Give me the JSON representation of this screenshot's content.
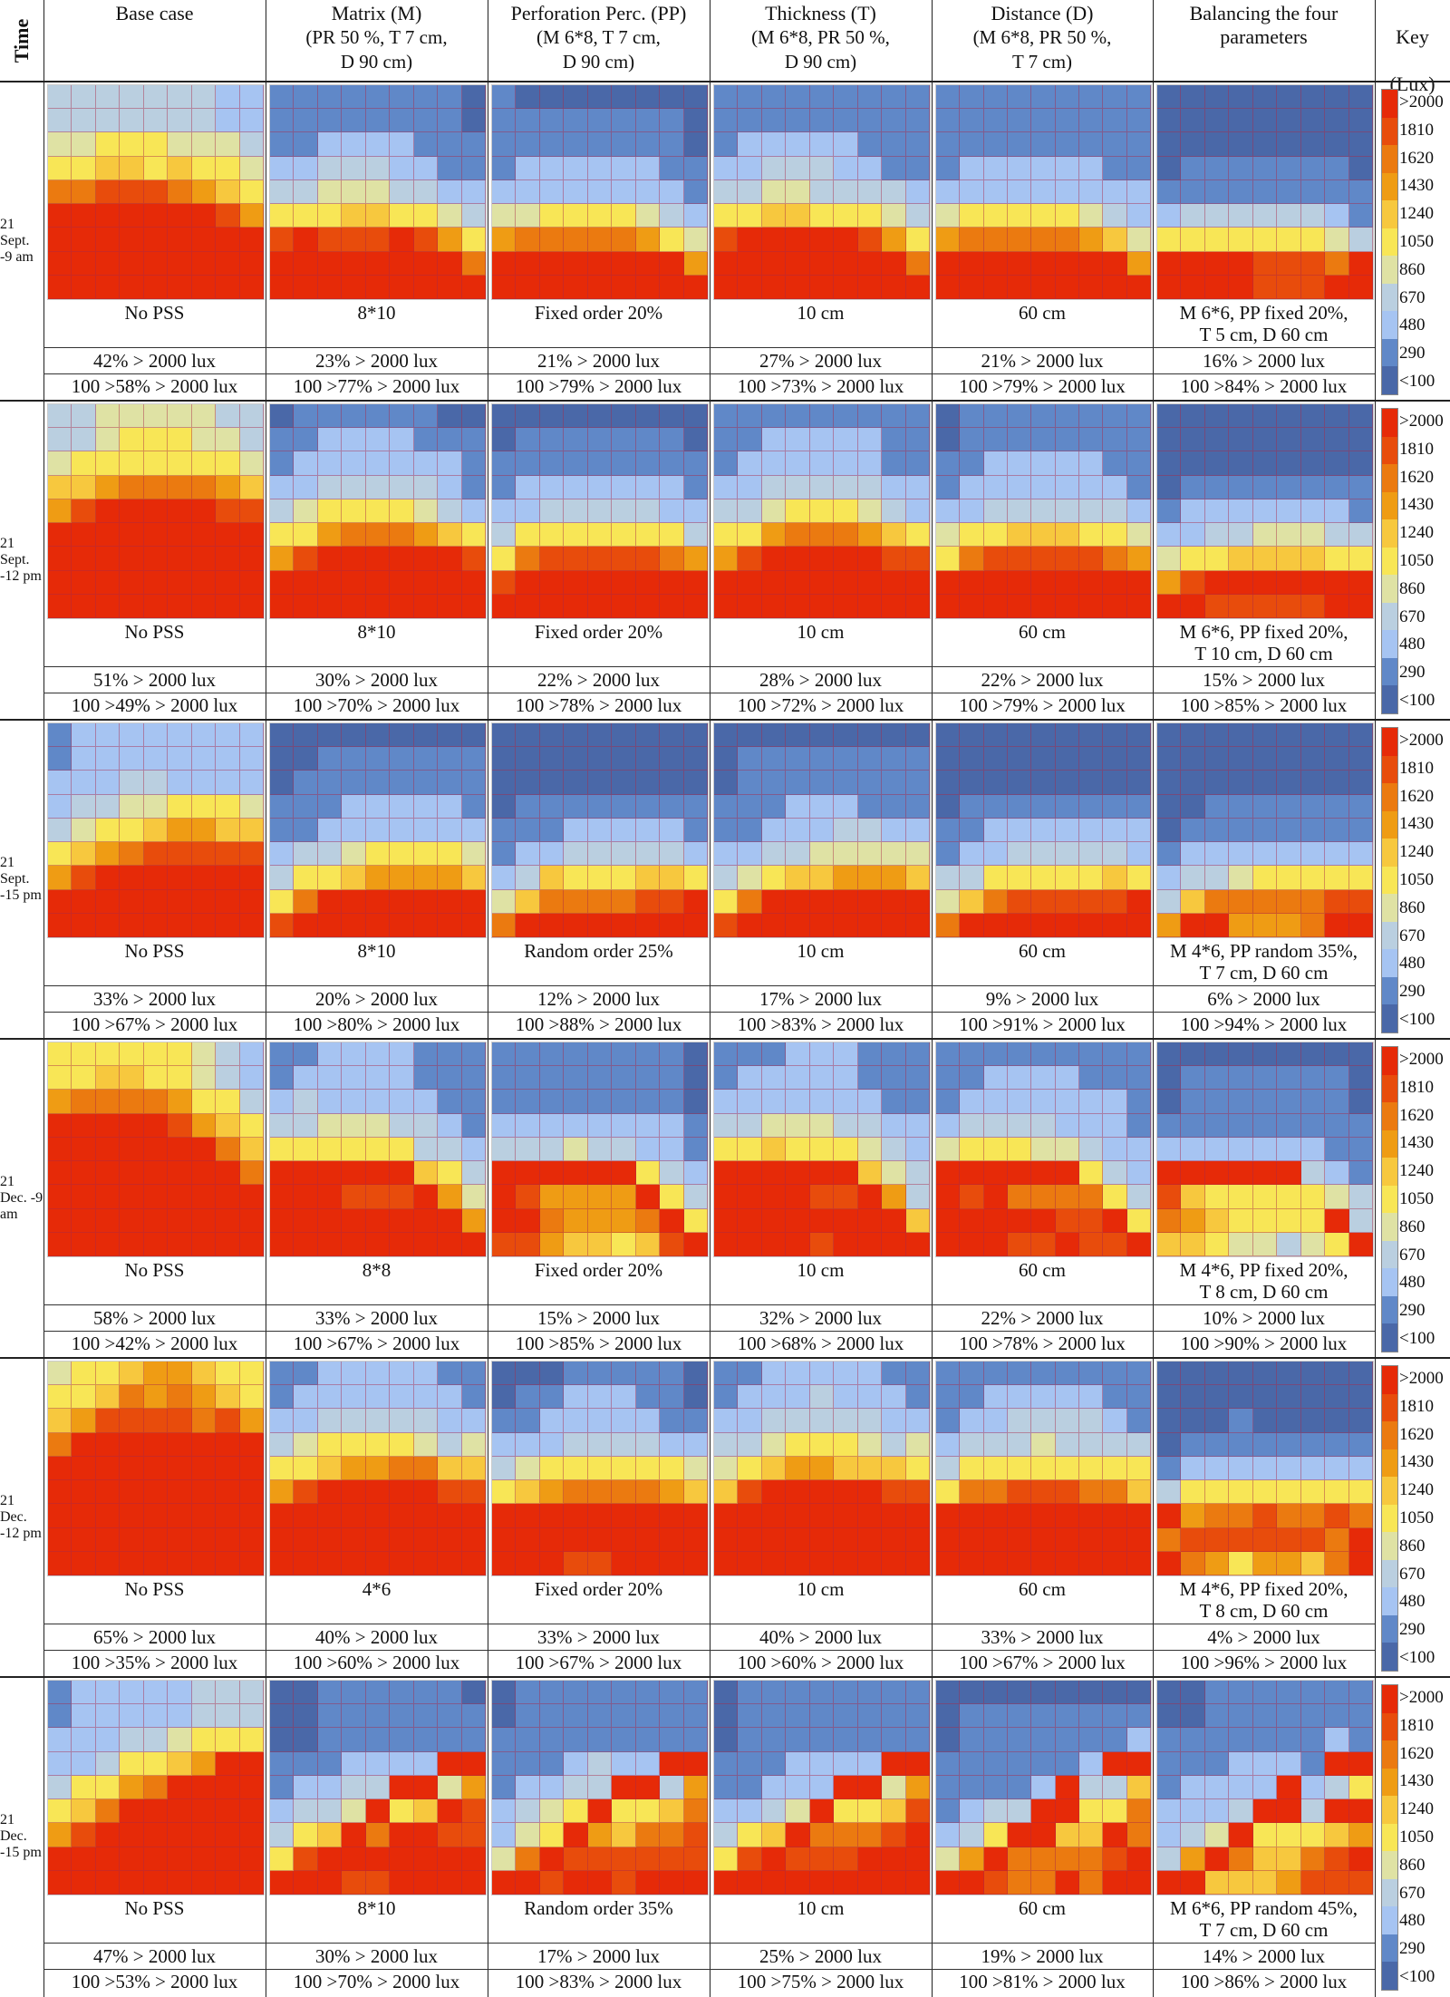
{
  "header": {
    "time": "Time",
    "columns": [
      {
        "title": "Base case",
        "sub": ""
      },
      {
        "title": "Matrix (M)",
        "sub": "(PR 50 %, T 7 cm,\nD 90 cm)"
      },
      {
        "title": "Perforation Perc. (PP)",
        "sub": "(M 6*8, T 7 cm,\nD 90 cm)"
      },
      {
        "title": "Thickness (T)",
        "sub": "(M 6*8, PR 50 %,\nD 90 cm)"
      },
      {
        "title": "Distance (D)",
        "sub": "(M 6*8, PR 50 %,\nT 7 cm)"
      },
      {
        "title": "Balancing the four\nparameters",
        "sub": ""
      }
    ],
    "key_title": "Key",
    "key_unit": "(Lux)"
  },
  "key": {
    "labels": [
      ">2000",
      "1810",
      "1620",
      "1430",
      "1240",
      "1050",
      "860",
      "670",
      "480",
      "290",
      "<100"
    ],
    "colors": [
      "#4a68a8",
      "#6088c8",
      "#a6c4f2",
      "#bacfe0",
      "#dfe2a4",
      "#f8e656",
      "#f7c83e",
      "#ef9c14",
      "#eb7a10",
      "#e84c0c",
      "#e62a08"
    ]
  },
  "bands": [
    {
      "time": "21 Sept. -9 am",
      "cases": [
        {
          "label": "No PSS",
          "stat1": "42% > 2000 lux",
          "stat2": "100 >58% > 2000 lux",
          "grid": [
            "333333322",
            "333333322",
            "445554443",
            "556656554",
            "889998765",
            "AAAAAAA97",
            "AAAAAAAAA",
            "AAAAAAAAA",
            "AAAAAAAAA"
          ]
        },
        {
          "label": "8*10",
          "stat1": "23% > 2000 lux",
          "stat2": "100 >77% > 2000 lux",
          "grid": [
            "111111110",
            "111111110",
            "112222111",
            "223332211",
            "334443322",
            "555665543",
            "9A999A975",
            "AAAAAAAA8",
            "AAAAAAAAA"
          ]
        },
        {
          "label": "Fixed order 20%",
          "stat1": "21% > 2000 lux",
          "stat2": "100 >79% > 2000 lux",
          "grid": [
            "100000000",
            "111111110",
            "111111110",
            "122222211",
            "222222221",
            "445555432",
            "788888754",
            "AAAAAAAA7",
            "AAAAAAAAA"
          ]
        },
        {
          "label": "10 cm",
          "stat1": "27% > 2000 lux",
          "stat2": "100 >73% > 2000 lux",
          "grid": [
            "111111111",
            "111111111",
            "122222111",
            "223332211",
            "334433332",
            "556655543",
            "9AAAAA975",
            "AAAAAAAA8",
            "AAAAAAAAA"
          ]
        },
        {
          "label": "60 cm",
          "stat1": "21% > 2000 lux",
          "stat2": "100 >79% > 2000 lux",
          "grid": [
            "111111111",
            "111111111",
            "111111111",
            "122222211",
            "222222222",
            "455555432",
            "788888764",
            "AAAAAAAA7",
            "AAAAAAAAA"
          ]
        },
        {
          "label": "M 6*6, PP fixed 20%,\nT 5 cm, D 60 cm",
          "stat1": "16% > 2000 lux",
          "stat2": "100 >84% > 2000 lux",
          "grid": [
            "000000000",
            "000000000",
            "000000000",
            "011111110",
            "111111111",
            "233333321",
            "555555543",
            "AAAA9998A",
            "AAAA999AA"
          ]
        }
      ]
    },
    {
      "time": "21 Sept. -12 pm",
      "cases": [
        {
          "label": "No PSS",
          "stat1": "51% > 2000 lux",
          "stat2": "100 >49% > 2000 lux",
          "grid": [
            "334444433",
            "334555443",
            "455555554",
            "667888876",
            "79AAAAA99",
            "AAAAAAAAA",
            "AAAAAAAAA",
            "AAAAAAAAA",
            "AAAAAAAAA"
          ]
        },
        {
          "label": "8*10",
          "stat1": "30% > 2000 lux",
          "stat2": "100 >70% > 2000 lux",
          "grid": [
            "011111100",
            "112222111",
            "122222221",
            "223333321",
            "345555432",
            "557888765",
            "79AAAAAA9",
            "AAAAAAAAA",
            "AAAAAAAAA"
          ]
        },
        {
          "label": "Fixed order 20%",
          "stat1": "22% > 2000 lux",
          "stat2": "100 >78% > 2000 lux",
          "grid": [
            "000000000",
            "011111110",
            "111111111",
            "122222221",
            "223333322",
            "355555553",
            "589999987",
            "9AAAAAAAA",
            "AAAAAAAAA"
          ]
        },
        {
          "label": "10 cm",
          "stat1": "28% > 2000 lux",
          "stat2": "100 >72% > 2000 lux",
          "grid": [
            "111111111",
            "112222211",
            "122222211",
            "223333322",
            "334555432",
            "557888765",
            "79AAAAA99",
            "AAAAAAAAA",
            "AAAAAAAAA"
          ]
        },
        {
          "label": "60 cm",
          "stat1": "22% > 2000 lux",
          "stat2": "100 >79% > 2000 lux",
          "grid": [
            "011111111",
            "011111111",
            "112222211",
            "122222221",
            "223333332",
            "455666554",
            "589999987",
            "AAAAAAAAA",
            "AAAAAAAAA"
          ]
        },
        {
          "label": "M 6*6, PP fixed 20%,\nT 10 cm, D 60 cm",
          "stat1": "15% > 2000 lux",
          "stat2": "100 >85% > 2000 lux",
          "grid": [
            "000000000",
            "000000000",
            "000000000",
            "011111111",
            "122222221",
            "223344433",
            "455666655",
            "79AAAAAAA",
            "AA99999AA"
          ]
        }
      ]
    },
    {
      "time": "21 Sept. -15 pm",
      "cases": [
        {
          "label": "No PSS",
          "stat1": "33% > 2000 lux",
          "stat2": "100 >67% > 2000 lux",
          "grid": [
            "122222222",
            "122222222",
            "222332222",
            "233445554",
            "345567766",
            "567899999",
            "79AAAAAAA",
            "AAAAAAAAA",
            "AAAAAAAAA"
          ]
        },
        {
          "label": "8*10",
          "stat1": "20% > 2000 lux",
          "stat2": "100 >80% > 2000 lux",
          "grid": [
            "000000000",
            "001111111",
            "011111111",
            "111222221",
            "112222222",
            "233455554",
            "355677776",
            "58AAAAAAA",
            "9AAAAAAAA"
          ]
        },
        {
          "label": "Random order 25%",
          "stat1": "12% > 2000 lux",
          "stat2": "100 >88% > 2000 lux",
          "grid": [
            "000000000",
            "000000000",
            "000000000",
            "011111111",
            "111222221",
            "122333332",
            "236555665",
            "46888899A",
            "8AAAAAAAA"
          ]
        },
        {
          "label": "10 cm",
          "stat1": "17% > 2000 lux",
          "stat2": "100 >83% > 2000 lux",
          "grid": [
            "000000000",
            "011111111",
            "011111111",
            "111222111",
            "112223322",
            "223344444",
            "345667776",
            "58AAAAAAA",
            "9AAAAAAAA"
          ]
        },
        {
          "label": "60 cm",
          "stat1": "9% > 2000 lux",
          "stat2": "100 >91% > 2000 lux",
          "grid": [
            "000000000",
            "000000000",
            "000000000",
            "011111111",
            "112222222",
            "122333332",
            "335555565",
            "46899999A",
            "8AAAAAAAA"
          ]
        },
        {
          "label": "M 4*6, PP random 35%,\nT 7 cm, D 60 cm",
          "stat1": "6% > 2000 lux",
          "stat2": "100 >94% > 2000 lux",
          "grid": [
            "000000000",
            "000000000",
            "000000000",
            "001111111",
            "011111111",
            "122222222",
            "233455555",
            "368888899",
            "7AA7778AA"
          ]
        }
      ]
    },
    {
      "time": "21 Dec. -9 am",
      "cases": [
        {
          "label": "No PSS",
          "stat1": "58% > 2000 lux",
          "stat2": "100 >42% > 2000 lux",
          "grid": [
            "555555432",
            "556655432",
            "788887553",
            "AAAAA9765",
            "AAAAAAA86",
            "AAAAAAAA8",
            "AAAAAAAAA",
            "AAAAAAAAA",
            "AAAAAAAAA"
          ]
        },
        {
          "label": "8*8",
          "stat1": "33% > 2000 lux",
          "stat2": "100 >67% > 2000 lux",
          "grid": [
            "112222111",
            "122222111",
            "232222211",
            "334443321",
            "555555332",
            "AAAAAA653",
            "AAA999A74",
            "AAAAAAAA7",
            "AAAAAAAAA"
          ]
        },
        {
          "label": "Fixed order 20%",
          "stat1": "15% > 2000 lux",
          "stat2": "100 >85% > 2000 lux",
          "grid": [
            "111111110",
            "111111110",
            "111111110",
            "222222221",
            "333433221",
            "AAAAAA532",
            "A97777A53",
            "AA87778A5",
            "99766569A"
          ]
        },
        {
          "label": "10 cm",
          "stat1": "32% > 2000 lux",
          "stat2": "100 >68% > 2000 lux",
          "grid": [
            "111222111",
            "122222111",
            "222222211",
            "334443322",
            "556555432",
            "AAAAAA643",
            "AAAA99A73",
            "AAAAAAAA6",
            "AAAA9AAAA"
          ]
        },
        {
          "label": "60 cm",
          "stat1": "22% > 2000 lux",
          "stat2": "100 >78% > 2000 lux",
          "grid": [
            "111111111",
            "112222111",
            "122222221",
            "233332221",
            "455544322",
            "AAAAAA532",
            "A9A888853",
            "AAAAA99A5",
            "AAA99A99A"
          ]
        },
        {
          "label": "M 4*6, PP fixed 20%,\nT 8 cm, D 60 cm",
          "stat1": "10% > 2000 lux",
          "stat2": "100 >90% > 2000 lux",
          "grid": [
            "000000000",
            "011111110",
            "011111110",
            "111111111",
            "222222211",
            "AAAAAA321",
            "965555543",
            "8765555A3",
            "66544345A"
          ]
        }
      ]
    },
    {
      "time": "21 Dec. -12 pm",
      "cases": [
        {
          "label": "No PSS",
          "stat1": "65% > 2000 lux",
          "stat2": "100 >35% > 2000 lux",
          "grid": [
            "455677655",
            "556878765",
            "679999897",
            "8AAAAAAAA",
            "AAAAAAAAA",
            "AAAAAAAAA",
            "AAAAAAAAA",
            "AAAAAAAAA",
            "AAAAAAAAA"
          ]
        },
        {
          "label": "4*6",
          "stat1": "40% > 2000 lux",
          "stat2": "100 >60% > 2000 lux",
          "grid": [
            "112222211",
            "122222221",
            "223333322",
            "345555434",
            "556778866",
            "79AAAAA99",
            "AAAAAAAAA",
            "AAAAAAAAA",
            "AAAAAAAAA"
          ]
        },
        {
          "label": "Fixed order 20%",
          "stat1": "33% > 2000 lux",
          "stat2": "100 >67% > 2000 lux",
          "grid": [
            "000111110",
            "011222110",
            "112222211",
            "222333322",
            "345555554",
            "567888876",
            "AAAAAAAAA",
            "AAAAAAAAA",
            "AAA99AAAA"
          ]
        },
        {
          "label": "10 cm",
          "stat1": "40% > 2000 lux",
          "stat2": "100 >60% > 2000 lux",
          "grid": [
            "112222211",
            "122232221",
            "223333322",
            "334555434",
            "456776665",
            "69AAAAA99",
            "AAAAAAAAA",
            "AAAAAAAAA",
            "AAAAAAAAA"
          ]
        },
        {
          "label": "60 cm",
          "stat1": "33% > 2000 lux",
          "stat2": "100 >67% > 2000 lux",
          "grid": [
            "111111111",
            "112222211",
            "122333321",
            "233343333",
            "355555555",
            "588999886",
            "AAAAAAAAA",
            "AAAAAAAAA",
            "AAAAAAAAA"
          ]
        },
        {
          "label": "M 4*6, PP fixed 20%,\nT 8 cm, D 60 cm",
          "stat1": "4% > 2000 lux",
          "stat2": "100 >96% > 2000 lux",
          "grid": [
            "000000000",
            "000000000",
            "000100000",
            "011111111",
            "122222222",
            "355555555",
            "A78898898",
            "89999998A",
            "A8757768A"
          ]
        }
      ]
    },
    {
      "time": "21 Dec. -15 pm",
      "cases": [
        {
          "label": "No PSS",
          "stat1": "47% > 2000 lux",
          "stat2": "100 >53% > 2000 lux",
          "grid": [
            "122222333",
            "122222333",
            "222334555",
            "2235567AA",
            "35578AAAA",
            "568AAAAAA",
            "79AAAAAAA",
            "AAAAAAAAA",
            "AAAAAAAAA"
          ]
        },
        {
          "label": "8*10",
          "stat1": "30% > 2000 lux",
          "stat2": "100 >70% > 2000 lux",
          "grid": [
            "001111110",
            "001111111",
            "001111111",
            "1112222AA",
            "12233AA47",
            "2334A56A9",
            "356A8AA99",
            "59AAAAAAA",
            "AAA99AAAA"
          ]
        },
        {
          "label": "Random order 35%",
          "stat1": "17% > 2000 lux",
          "stat2": "100 >83% > 2000 lux",
          "grid": [
            "011111111",
            "011111111",
            "111111111",
            "1112322AA",
            "12233AA37",
            "2345A5568",
            "245A76889",
            "48A999999",
            "AA9AA9AAA"
          ]
        },
        {
          "label": "10 cm",
          "stat1": "25% > 2000 lux",
          "stat2": "100 >75% > 2000 lux",
          "grid": [
            "011111111",
            "011111111",
            "011111111",
            "1112222AA",
            "11222AA47",
            "2234A5569",
            "356A8889A",
            "59A999AAA",
            "AAAAAAAAA"
          ]
        },
        {
          "label": "60 cm",
          "stat1": "19% > 2000 lux",
          "stat2": "100 >81% > 2000 lux",
          "grid": [
            "000000000",
            "011111111",
            "011111112",
            "1111112AA",
            "11112A336",
            "1233AA558",
            "235AA66A8",
            "47A88889A",
            "AA988A8AA"
          ]
        },
        {
          "label": "M 6*6, PP random 45%,\nT 7 cm, D 60 cm",
          "stat1": "14% > 2000 lux",
          "stat2": "100 >86% > 2000 lux",
          "grid": [
            "001111111",
            "001111111",
            "111111121",
            "1112221AA",
            "12222A235",
            "2223AA3AA",
            "234A55567",
            "37A86689A",
            "AA6667999"
          ]
        }
      ]
    }
  ]
}
